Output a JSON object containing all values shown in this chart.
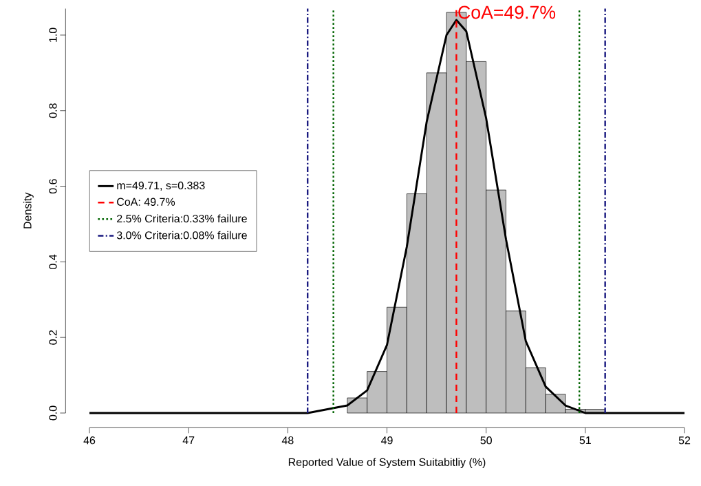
{
  "chart_data": {
    "type": "histogram",
    "xlabel": "Reported Value of System Suitabitliy (%)",
    "ylabel": "Density",
    "bins": [
      48.6,
      48.8,
      49.0,
      49.2,
      49.4,
      49.6,
      49.8,
      50.0,
      50.2,
      50.4,
      50.6,
      50.8,
      51.0,
      51.2
    ],
    "values": [
      0.04,
      0.11,
      0.28,
      0.58,
      0.9,
      1.06,
      0.93,
      0.59,
      0.27,
      0.12,
      0.05,
      0.01,
      0.01
    ],
    "color": "#bebebe",
    "series": [
      {
        "type": "line",
        "name": "m=49.71, s=0.383",
        "color": "#000000",
        "x": [
          46,
          47,
          48,
          48.2,
          48.4,
          48.6,
          48.8,
          49.0,
          49.2,
          49.4,
          49.6,
          49.7,
          49.8,
          50.0,
          50.2,
          50.4,
          50.6,
          50.8,
          51.0,
          51.2,
          51.5,
          52
        ],
        "values": [
          0,
          0,
          0,
          0,
          0.01,
          0.02,
          0.06,
          0.18,
          0.44,
          0.77,
          1.0,
          1.04,
          1.01,
          0.78,
          0.46,
          0.19,
          0.07,
          0.02,
          0,
          0,
          0,
          0
        ]
      },
      {
        "type": "line",
        "name": "CoA: 49.7%",
        "color": "#ff0000",
        "line_style": "dashed",
        "x": [
          49.7,
          49.7
        ],
        "values": [
          0,
          1.07
        ]
      },
      {
        "type": "line",
        "name": "2.5% Criteria:0.33% failure",
        "color": "#006400",
        "line_style": "dotted",
        "x": [
          48.46,
          48.46
        ],
        "values": [
          0,
          1.07
        ]
      },
      {
        "type": "line",
        "color": "#006400",
        "line_style": "dotted",
        "x": [
          50.94,
          50.94
        ],
        "values": [
          0,
          1.07
        ]
      },
      {
        "type": "line",
        "name": "3.0% Criteria:0.08% failure",
        "color": "#1a1a80",
        "line_style": "dashdot",
        "x": [
          48.2,
          48.2
        ],
        "values": [
          0,
          1.07
        ]
      },
      {
        "type": "line",
        "color": "#1a1a80",
        "line_style": "dashdot",
        "x": [
          51.2,
          51.2
        ],
        "values": [
          0,
          1.07
        ]
      }
    ],
    "annotations": [
      {
        "text": "CoA=49.7%",
        "x": 49.7,
        "y": 1.04
      }
    ],
    "xlim": [
      46,
      52
    ],
    "ylim": [
      0,
      1.07
    ],
    "xticks": [
      46,
      47,
      48,
      49,
      50,
      51,
      52
    ],
    "yticks": [
      {
        "value": 0,
        "label": "0.0"
      },
      0.2,
      0.4,
      0.6,
      0.8,
      {
        "value": 1,
        "label": "1.0"
      }
    ],
    "legend": "left",
    "grid": false
  }
}
